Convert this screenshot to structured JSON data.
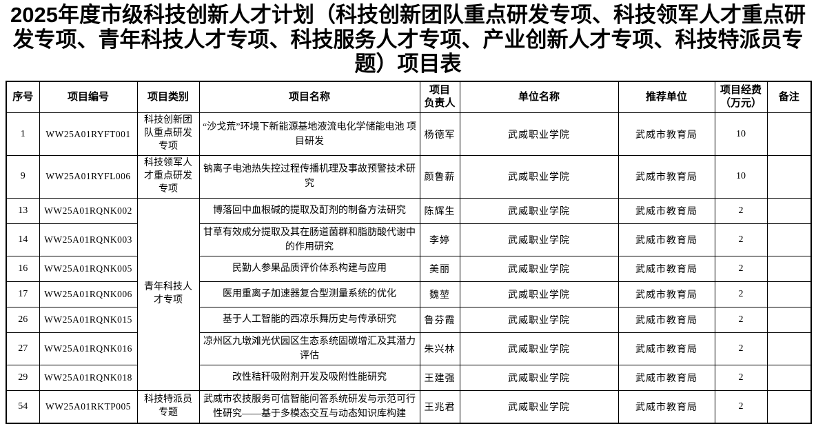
{
  "title": "2025年度市级科技创新人才计划（科技创新团队重点研发专项、科技领军人才重点研发专项、青年科技人才专项、科技服务人才专项、产业创新人才专项、科技特派员专题）项目表",
  "table": {
    "headers": [
      {
        "key": "seq",
        "label": "序号"
      },
      {
        "key": "code",
        "label": "项目编号"
      },
      {
        "key": "category",
        "label": "项目类别"
      },
      {
        "key": "name",
        "label": "项目名称"
      },
      {
        "key": "leader",
        "label": "项目\n负责人"
      },
      {
        "key": "unit",
        "label": "单位名称"
      },
      {
        "key": "recommender",
        "label": "推荐单位"
      },
      {
        "key": "funding",
        "label": "项目经费\n（万元）"
      },
      {
        "key": "note",
        "label": "备注"
      }
    ],
    "rows": [
      {
        "seq": "1",
        "code": "WW25A01RYFT001",
        "category": "科技创新团队重点研发专项",
        "category_rowspan": 1,
        "name": "“沙戈荒”环境下新能源基地液流电化学储能电池 项目研发",
        "leader": "杨德军",
        "unit": "武威职业学院",
        "recommender": "武威市教育局",
        "funding": "10",
        "note": ""
      },
      {
        "seq": "9",
        "code": "WW25A01RYFL006",
        "category": "科技领军人才重点研发专项",
        "category_rowspan": 1,
        "name": "钠离子电池热失控过程传播机理及事故预警技术研究",
        "leader": "颜鲁薪",
        "unit": "武威职业学院",
        "recommender": "武威市教育局",
        "funding": "10",
        "note": ""
      },
      {
        "seq": "13",
        "code": "WW25A01RQNK002",
        "category": "青年科技人才专项",
        "category_rowspan": 7,
        "name": "博落回中血根碱的提取及酊剂的制备方法研究",
        "leader": "陈辉生",
        "unit": "武威职业学院",
        "recommender": "武威市教育局",
        "funding": "2",
        "note": ""
      },
      {
        "seq": "14",
        "code": "WW25A01RQNK003",
        "category": null,
        "name": "甘草有效成分提取及其在肠道菌群和脂肪酸代谢中的作用研究",
        "leader": "李婷",
        "unit": "武威职业学院",
        "recommender": "武威市教育局",
        "funding": "2",
        "note": ""
      },
      {
        "seq": "16",
        "code": "WW25A01RQNK005",
        "category": null,
        "name": "民勤人参果品质评价体系构建与应用",
        "leader": "美丽",
        "unit": "武威职业学院",
        "recommender": "武威市教育局",
        "funding": "2",
        "note": ""
      },
      {
        "seq": "17",
        "code": "WW25A01RQNK006",
        "category": null,
        "name": "医用重离子加速器复合型测量系统的优化",
        "leader": "魏堃",
        "unit": "武威职业学院",
        "recommender": "武威市教育局",
        "funding": "2",
        "note": ""
      },
      {
        "seq": "26",
        "code": "WW25A01RQNK015",
        "category": null,
        "name": "基于人工智能的西凉乐舞历史与传承研究",
        "leader": "鲁芬霞",
        "unit": "武威职业学院",
        "recommender": "武威市教育局",
        "funding": "2",
        "note": ""
      },
      {
        "seq": "27",
        "code": "WW25A01RQNK016",
        "category": null,
        "name": "凉州区九墩滩光伏园区生态系统固碳增汇及其潜力评估",
        "leader": "朱兴林",
        "unit": "武威职业学院",
        "recommender": "武威市教育局",
        "funding": "2",
        "note": ""
      },
      {
        "seq": "29",
        "code": "WW25A01RQNK018",
        "category": null,
        "name": "改性秸秆吸附剂开发及吸附性能研究",
        "leader": "王建强",
        "unit": "武威职业学院",
        "recommender": "武威市教育局",
        "funding": "2",
        "note": ""
      },
      {
        "seq": "54",
        "code": "WW25A01RKTP005",
        "category": "科技特派员专题",
        "category_rowspan": 1,
        "name": "武威市农技服务可信智能问答系统研发与示范可行性研究——基于多模态交互与动态知识库构建",
        "leader": "王兆君",
        "unit": "武威职业学院",
        "recommender": "武威市教育局",
        "funding": "2",
        "note": ""
      }
    ]
  }
}
